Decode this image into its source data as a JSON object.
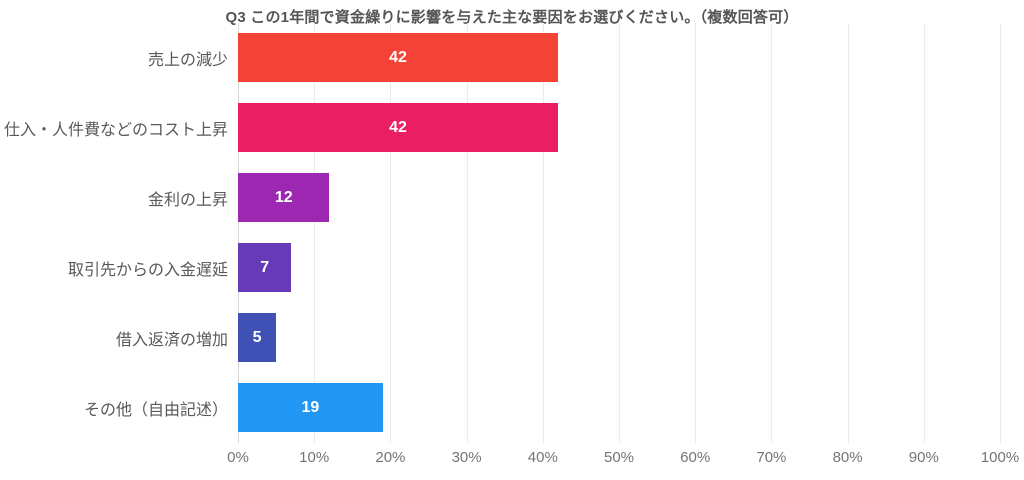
{
  "chart_data": {
    "type": "bar",
    "orientation": "horizontal",
    "title": "Q3 この1年間で資金繰りに影響を与えた主な要因をお選びください。（複数回答可）",
    "categories": [
      "売上の減少",
      "仕入・人件費などのコスト上昇",
      "金利の上昇",
      "取引先からの入金遅延",
      "借入返済の増加",
      "その他（自由記述）"
    ],
    "values": [
      42,
      42,
      12,
      7,
      5,
      19
    ],
    "bar_colors": [
      "#F44336",
      "#E91E63",
      "#9C27B0",
      "#673AB7",
      "#3F51B5",
      "#2196F3"
    ],
    "value_label_style": "inside-center-white-bold",
    "x_ticks": [
      "0%",
      "10%",
      "20%",
      "30%",
      "40%",
      "50%",
      "60%",
      "70%",
      "80%",
      "90%",
      "100%"
    ],
    "x_tick_values": [
      0,
      10,
      20,
      30,
      40,
      50,
      60,
      70,
      80,
      90,
      100
    ],
    "xlim": [
      0,
      100
    ],
    "grid": "vertical-light-gray",
    "legend": "none",
    "background": "#ffffff",
    "title_color": "#555555",
    "label_color": "#595959",
    "tick_color": "#757575",
    "gridline_color": "#ebebeb"
  }
}
